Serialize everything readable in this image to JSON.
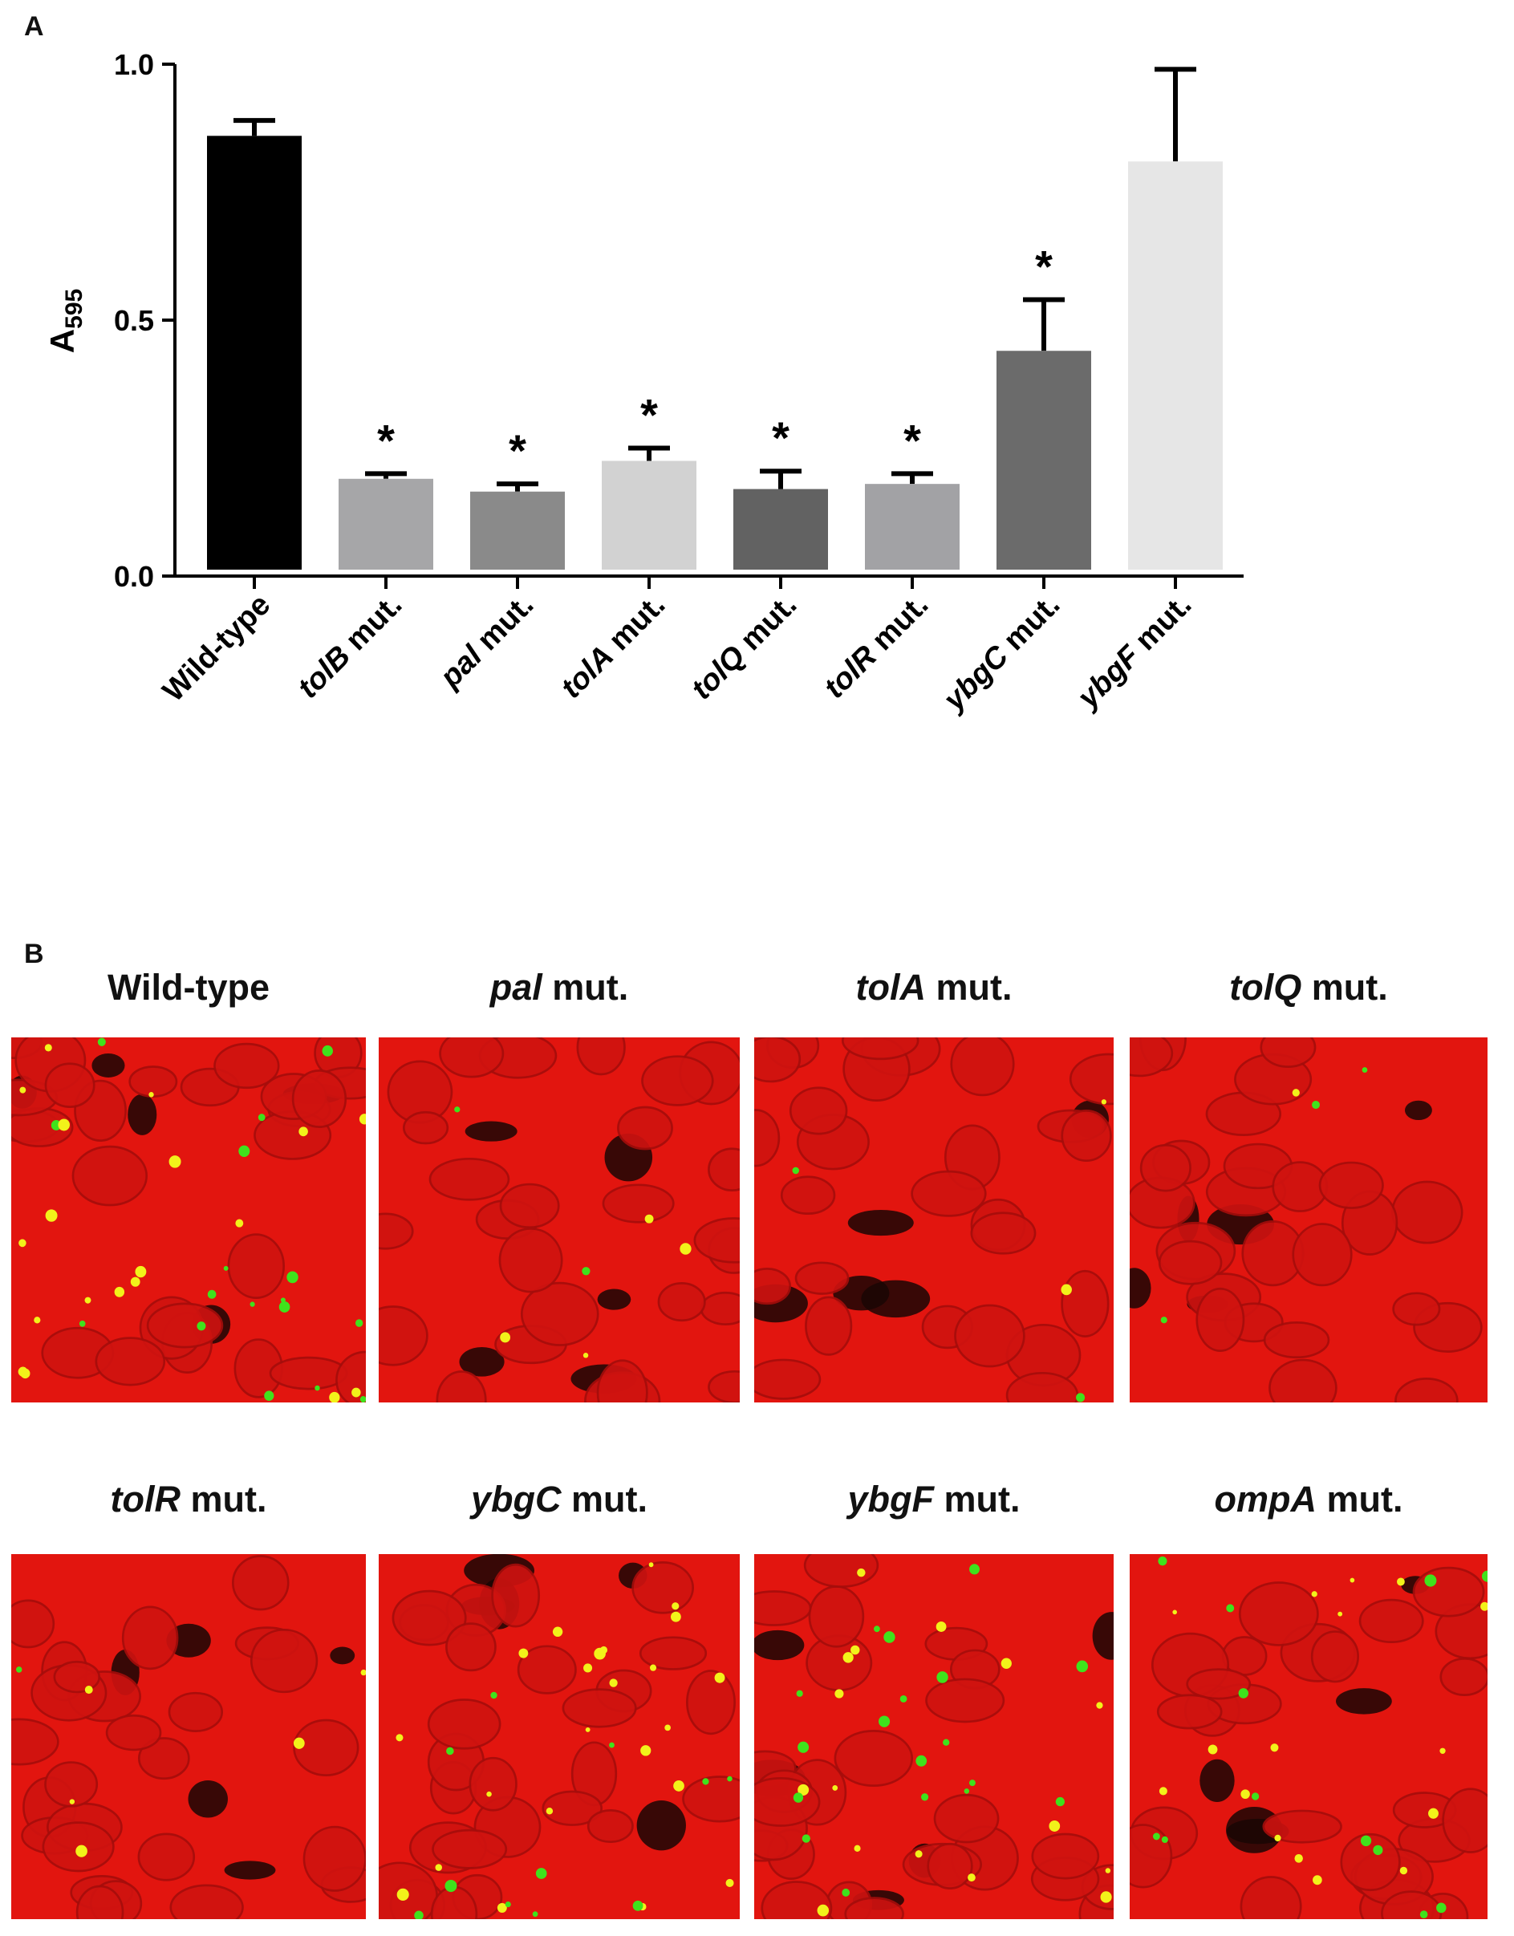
{
  "panels": {
    "a_label": "A",
    "b_label": "B"
  },
  "chart_data": {
    "type": "bar",
    "ylabel": {
      "main": "A",
      "sub": "595"
    },
    "ylim": [
      0,
      1.0
    ],
    "yticks": [
      "0.0",
      "0.5",
      "1.0"
    ],
    "categories": [
      {
        "italic": "",
        "rest": "Wild-type",
        "value": 0.86,
        "error": 0.03,
        "color": "#000000",
        "sig": ""
      },
      {
        "italic": "tolB",
        "rest": " mut.",
        "value": 0.19,
        "error": 0.01,
        "color": "#a6a6a8",
        "sig": "*"
      },
      {
        "italic": "pal",
        "rest": " mut.",
        "value": 0.165,
        "error": 0.015,
        "color": "#8a8a8a",
        "sig": "*"
      },
      {
        "italic": "tolA",
        "rest": " mut.",
        "value": 0.225,
        "error": 0.025,
        "color": "#d2d2d2",
        "sig": "*"
      },
      {
        "italic": "tolQ",
        "rest": " mut.",
        "value": 0.17,
        "error": 0.035,
        "color": "#626262",
        "sig": "*"
      },
      {
        "italic": "tolR",
        "rest": " mut.",
        "value": 0.18,
        "error": 0.02,
        "color": "#a2a2a5",
        "sig": "*"
      },
      {
        "italic": "ybgC",
        "rest": " mut.",
        "value": 0.44,
        "error": 0.1,
        "color": "#6b6b6b",
        "sig": "*"
      },
      {
        "italic": "ybgF",
        "rest": " mut.",
        "value": 0.81,
        "error": 0.18,
        "color": "#e6e6e6",
        "sig": ""
      }
    ]
  },
  "micrographs": [
    {
      "italic": "",
      "rest": "Wild-type",
      "colony_level": 0.9
    },
    {
      "italic": "pal",
      "rest": " mut.",
      "colony_level": 0.15
    },
    {
      "italic": "tolA",
      "rest": " mut.",
      "colony_level": 0.1
    },
    {
      "italic": "tolQ",
      "rest": " mut.",
      "colony_level": 0.1
    },
    {
      "italic": "tolR",
      "rest": " mut.",
      "colony_level": 0.15
    },
    {
      "italic": "ybgC",
      "rest": " mut.",
      "colony_level": 0.85
    },
    {
      "italic": "ybgF",
      "rest": " mut.",
      "colony_level": 0.85
    },
    {
      "italic": "ompA",
      "rest": " mut.",
      "colony_level": 0.7
    }
  ]
}
